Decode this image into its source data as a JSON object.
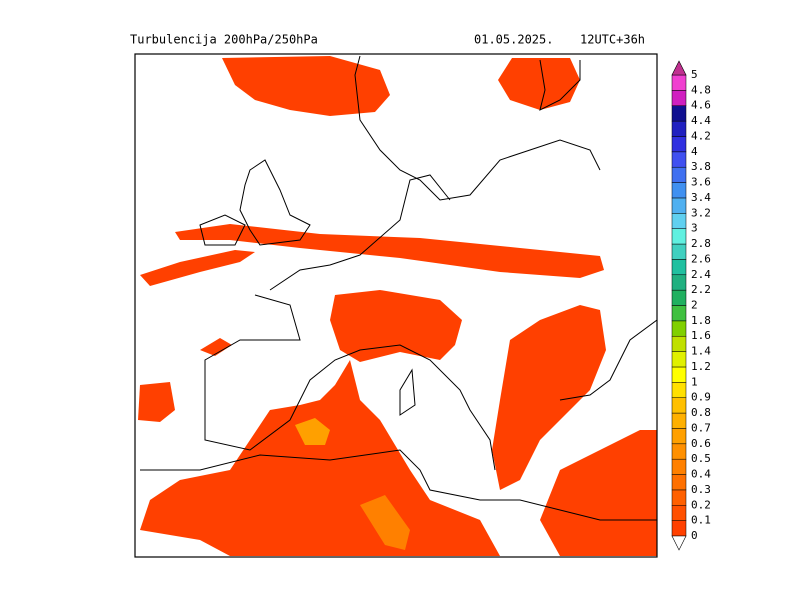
{
  "header": {
    "title": "Turbulencija 200hPa/250hPa",
    "date": "01.05.2025.",
    "run": "12UTC+36h"
  },
  "colorbar": {
    "labels": [
      "0",
      "0.1",
      "0.2",
      "0.3",
      "0.4",
      "0.5",
      "0.6",
      "0.7",
      "0.8",
      "0.9",
      "1",
      "1.2",
      "1.4",
      "1.6",
      "1.8",
      "2",
      "2.2",
      "2.4",
      "2.6",
      "2.8",
      "3",
      "3.2",
      "3.4",
      "3.6",
      "3.8",
      "4",
      "4.2",
      "4.4",
      "4.6",
      "4.8",
      "5"
    ],
    "colors": [
      "#ff4000",
      "#ff5000",
      "#ff6000",
      "#ff7000",
      "#ff8000",
      "#ff9000",
      "#ffa000",
      "#ffb000",
      "#ffc000",
      "#ffe000",
      "#ffff00",
      "#e0f000",
      "#c0e000",
      "#80d000",
      "#40c040",
      "#20b060",
      "#20b080",
      "#20c0a0",
      "#40d0c0",
      "#60f0e0",
      "#60d0f0",
      "#50b0f0",
      "#4090f0",
      "#4070f0",
      "#4050f0",
      "#3030e0",
      "#2020c0",
      "#101090",
      "#d020c0",
      "#f040d0"
    ],
    "under_color": "#ffffff",
    "over_color": "#c03090"
  }
}
